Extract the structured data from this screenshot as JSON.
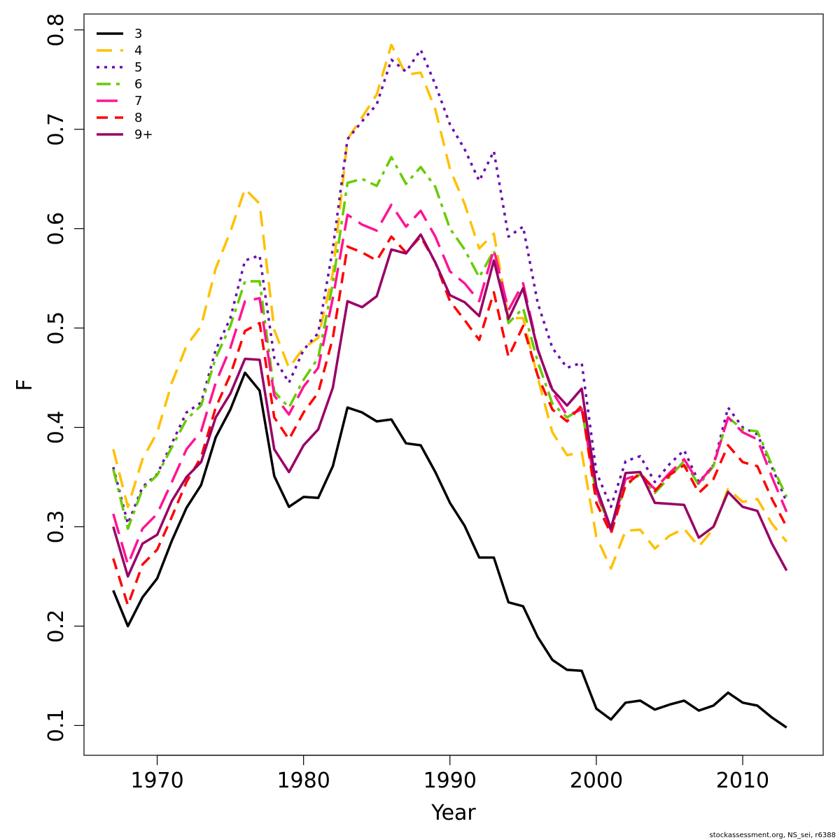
{
  "chart_data": {
    "type": "line",
    "xlabel": "Year",
    "ylabel": "F",
    "xlim": [
      1965,
      2015.5
    ],
    "ylim": [
      0.07,
      0.816
    ],
    "xticks": [
      1970,
      1980,
      1990,
      2000,
      2010
    ],
    "yticks": [
      0.1,
      0.2,
      0.3,
      0.4,
      0.5,
      0.6,
      0.7,
      0.8
    ],
    "legend_position": "top-left",
    "grid": false,
    "credit": "stockassessment.org, NS_sei, r6388",
    "x": [
      1967,
      1968,
      1969,
      1970,
      1971,
      1972,
      1973,
      1974,
      1975,
      1976,
      1977,
      1978,
      1979,
      1980,
      1981,
      1982,
      1983,
      1984,
      1985,
      1986,
      1987,
      1988,
      1989,
      1990,
      1991,
      1992,
      1993,
      1994,
      1995,
      1996,
      1997,
      1998,
      1999,
      2000,
      2001,
      2002,
      2003,
      2004,
      2005,
      2006,
      2007,
      2008,
      2009,
      2010,
      2011,
      2012,
      2013
    ],
    "series": [
      {
        "name": "3",
        "color": "#000000",
        "dash": "solid",
        "values": [
          0.236,
          0.2,
          0.229,
          0.248,
          0.286,
          0.319,
          0.342,
          0.39,
          0.418,
          0.455,
          0.437,
          0.351,
          0.32,
          0.33,
          0.329,
          0.361,
          0.42,
          0.415,
          0.406,
          0.408,
          0.384,
          0.382,
          0.355,
          0.324,
          0.301,
          0.269,
          0.269,
          0.224,
          0.22,
          0.189,
          0.166,
          0.156,
          0.155,
          0.117,
          0.106,
          0.123,
          0.125,
          0.116,
          0.121,
          0.125,
          0.115,
          0.12,
          0.133,
          0.123,
          0.12,
          0.108,
          0.098
        ]
      },
      {
        "name": "4",
        "color": "#FFC000",
        "dash": "long",
        "values": [
          0.378,
          0.32,
          0.368,
          0.395,
          0.445,
          0.482,
          0.502,
          0.56,
          0.597,
          0.64,
          0.625,
          0.498,
          0.46,
          0.48,
          0.49,
          0.555,
          0.69,
          0.712,
          0.735,
          0.785,
          0.755,
          0.757,
          0.72,
          0.66,
          0.625,
          0.58,
          0.595,
          0.51,
          0.51,
          0.45,
          0.395,
          0.372,
          0.375,
          0.29,
          0.258,
          0.296,
          0.297,
          0.278,
          0.291,
          0.298,
          0.28,
          0.298,
          0.338,
          0.325,
          0.328,
          0.303,
          0.285
        ]
      },
      {
        "name": "5",
        "color": "#6A0DAD",
        "dash": "dot",
        "values": [
          0.36,
          0.303,
          0.34,
          0.353,
          0.384,
          0.415,
          0.425,
          0.478,
          0.51,
          0.568,
          0.573,
          0.47,
          0.445,
          0.478,
          0.495,
          0.58,
          0.69,
          0.708,
          0.725,
          0.77,
          0.758,
          0.78,
          0.745,
          0.705,
          0.68,
          0.648,
          0.678,
          0.592,
          0.602,
          0.525,
          0.48,
          0.46,
          0.465,
          0.355,
          0.32,
          0.366,
          0.371,
          0.345,
          0.363,
          0.377,
          0.345,
          0.362,
          0.42,
          0.4,
          0.393,
          0.36,
          0.325
        ]
      },
      {
        "name": "6",
        "color": "#66CC00",
        "dash": "dashdot",
        "values": [
          0.358,
          0.298,
          0.338,
          0.352,
          0.38,
          0.408,
          0.422,
          0.47,
          0.502,
          0.547,
          0.547,
          0.436,
          0.42,
          0.448,
          0.47,
          0.545,
          0.646,
          0.65,
          0.643,
          0.672,
          0.645,
          0.662,
          0.642,
          0.6,
          0.579,
          0.551,
          0.578,
          0.505,
          0.52,
          0.466,
          0.424,
          0.41,
          0.419,
          0.332,
          0.3,
          0.341,
          0.353,
          0.334,
          0.35,
          0.366,
          0.342,
          0.361,
          0.41,
          0.398,
          0.396,
          0.362,
          0.33
        ]
      },
      {
        "name": "7",
        "color": "#FF1493",
        "dash": "longdash",
        "values": [
          0.313,
          0.262,
          0.298,
          0.313,
          0.345,
          0.378,
          0.396,
          0.445,
          0.48,
          0.527,
          0.53,
          0.432,
          0.413,
          0.441,
          0.46,
          0.53,
          0.614,
          0.604,
          0.598,
          0.624,
          0.602,
          0.618,
          0.592,
          0.557,
          0.545,
          0.527,
          0.579,
          0.518,
          0.545,
          0.479,
          0.436,
          0.412,
          0.418,
          0.336,
          0.296,
          0.348,
          0.353,
          0.338,
          0.354,
          0.368,
          0.344,
          0.362,
          0.41,
          0.395,
          0.388,
          0.35,
          0.315
        ]
      },
      {
        "name": "8",
        "color": "#FF0000",
        "dash": "dash",
        "values": [
          0.268,
          0.221,
          0.262,
          0.277,
          0.31,
          0.345,
          0.37,
          0.42,
          0.453,
          0.497,
          0.505,
          0.41,
          0.388,
          0.415,
          0.435,
          0.49,
          0.582,
          0.576,
          0.568,
          0.592,
          0.576,
          0.592,
          0.566,
          0.527,
          0.508,
          0.488,
          0.536,
          0.471,
          0.502,
          0.452,
          0.418,
          0.406,
          0.422,
          0.324,
          0.293,
          0.342,
          0.354,
          0.336,
          0.352,
          0.362,
          0.334,
          0.348,
          0.382,
          0.365,
          0.361,
          0.328,
          0.3
        ]
      },
      {
        "name": "9+",
        "color": "#990066",
        "dash": "solid",
        "values": [
          0.3,
          0.25,
          0.283,
          0.292,
          0.326,
          0.35,
          0.365,
          0.41,
          0.434,
          0.469,
          0.468,
          0.378,
          0.355,
          0.382,
          0.398,
          0.44,
          0.527,
          0.521,
          0.532,
          0.579,
          0.575,
          0.594,
          0.566,
          0.533,
          0.526,
          0.512,
          0.568,
          0.509,
          0.54,
          0.478,
          0.438,
          0.422,
          0.439,
          0.34,
          0.298,
          0.354,
          0.355,
          0.324,
          0.323,
          0.322,
          0.289,
          0.3,
          0.335,
          0.32,
          0.316,
          0.283,
          0.256
        ]
      }
    ]
  }
}
